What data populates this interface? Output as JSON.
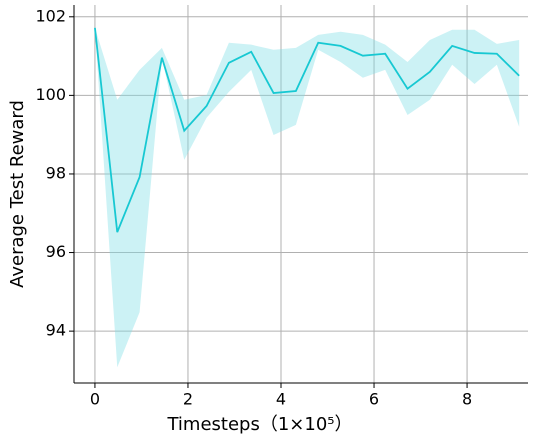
{
  "chart_data": {
    "type": "line",
    "xlabel": "Timesteps（1×10⁵）",
    "ylabel": "Average Test Reward",
    "x": [
      0,
      0.48,
      0.96,
      1.44,
      1.92,
      2.4,
      2.88,
      3.36,
      3.84,
      4.32,
      4.8,
      5.28,
      5.76,
      6.24,
      6.72,
      7.2,
      7.68,
      8.16,
      8.64,
      9.12
    ],
    "series": [
      {
        "color": "#17c8d2",
        "values": [
          101.72,
          96.52,
          97.92,
          100.96,
          99.1,
          99.73,
          100.83,
          101.11,
          100.06,
          100.11,
          101.34,
          101.26,
          101.01,
          101.06,
          100.17,
          100.6,
          101.26,
          101.08,
          101.06,
          100.5
        ],
        "upper": [
          101.72,
          99.89,
          100.65,
          101.21,
          99.89,
          100.01,
          101.34,
          101.29,
          101.16,
          101.21,
          101.54,
          101.62,
          101.54,
          101.29,
          100.85,
          101.41,
          101.67,
          101.67,
          101.31,
          101.41
        ],
        "lower": [
          101.72,
          93.08,
          94.48,
          100.96,
          98.36,
          99.43,
          100.09,
          100.65,
          98.99,
          99.25,
          101.16,
          100.85,
          100.45,
          100.65,
          99.5,
          99.89,
          100.78,
          100.29,
          100.78,
          99.2
        ],
        "band_color": "#7fdfe6"
      }
    ],
    "xlim": [
      -0.45,
      9.31
    ],
    "ylim": [
      92.68,
      102.3
    ],
    "xticks": [
      0,
      2,
      4,
      6,
      8
    ],
    "yticks": [
      94,
      96,
      98,
      100,
      102
    ],
    "grid": true
  }
}
